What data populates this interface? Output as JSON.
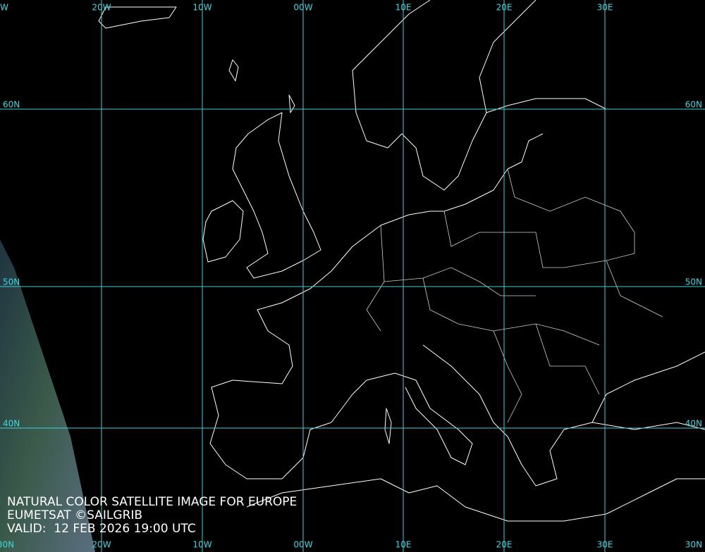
{
  "map": {
    "top_labels": [
      "W",
      "20W",
      "10W",
      "00W",
      "10E",
      "20E",
      "30E"
    ],
    "bottom_labels": [
      "30N",
      "20W",
      "10W",
      "00W",
      "10E",
      "20E",
      "30E",
      "30N"
    ],
    "left_labels": [
      "60N",
      "50N",
      "40N"
    ],
    "right_labels": [
      "60N",
      "50N",
      "40N"
    ],
    "caption": [
      "NATURAL COLOR SATELLITE IMAGE FOR EUROPE",
      "EUMETSAT ©SAILGRIB",
      "VALID:  12 FEB 2026 19:00 UTC"
    ]
  }
}
